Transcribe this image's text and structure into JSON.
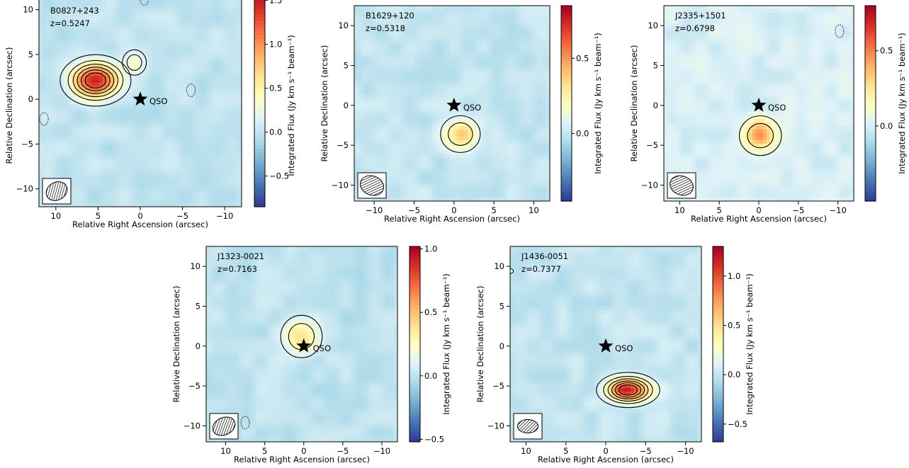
{
  "chart_data": [
    {
      "type": "heatmap",
      "source": "B0827+243",
      "redshift": "z=0.5247",
      "xlabel": "Relative Right Ascension (arcsec)",
      "ylabel": "Relative Declination (arcsec)",
      "colorbar_label": "Integrated Flux (Jy km s⁻¹ beam⁻¹)",
      "xlim": [
        12,
        -12
      ],
      "ylim": [
        -12,
        12.5
      ],
      "x_ticks": [
        "10",
        "5",
        "0",
        "−5",
        "−10"
      ],
      "y_ticks": [
        "−10",
        "−5",
        "0",
        "5",
        "10"
      ],
      "colorbar_range": [
        -0.85,
        1.65
      ],
      "colorbar_ticks": [
        "−0.5",
        "0.0",
        "0.5",
        "1.0",
        "1.5"
      ],
      "qso_label": "QSO",
      "qso_position": [
        0,
        0
      ],
      "emission": [
        {
          "x": 5.3,
          "y": 2.1,
          "peak": 1.55,
          "sx": 1.9,
          "sy": 1.3
        },
        {
          "x": 0.7,
          "y": 4.1,
          "peak": 0.3,
          "sx": 0.8,
          "sy": 0.8
        }
      ],
      "negative_contours": [
        [
          -0.5,
          11.2
        ],
        [
          -6,
          1
        ],
        [
          11.4,
          -2.2
        ]
      ],
      "beam": {
        "major": 2.6,
        "minor": 2.1,
        "pa": -30
      }
    },
    {
      "type": "heatmap",
      "source": "B1629+120",
      "redshift": "z=0.5318",
      "xlabel": "Relative Right Ascension (arcsec)",
      "ylabel": "Relative Declination (arcsec)",
      "colorbar_label": "Integrated Flux (Jy km s⁻¹ beam⁻¹)",
      "xlim": [
        -12.5,
        12
      ],
      "ylim": [
        -12,
        12.5
      ],
      "x_ticks": [
        "−10",
        "−5",
        "0",
        "5",
        "10"
      ],
      "y_ticks": [
        "−10",
        "−5",
        "0",
        "5",
        "10"
      ],
      "colorbar_range": [
        -0.45,
        0.85
      ],
      "colorbar_ticks": [
        "0.0",
        "0.5"
      ],
      "qso_label": "QSO",
      "qso_position": [
        0,
        0
      ],
      "emission": [
        {
          "x": 0.8,
          "y": -3.6,
          "peak": 0.4,
          "sx": 1.4,
          "sy": 1.3
        }
      ],
      "negative_contours": [],
      "beam": {
        "major": 3.0,
        "minor": 2.4,
        "pa": 20
      }
    },
    {
      "type": "heatmap",
      "source": "J2335+1501",
      "redshift": "z=0.6798",
      "xlabel": "Relative Right Ascension (arcsec)",
      "ylabel": "Relative Declination (arcsec)",
      "colorbar_label": "Integrated Flux (Jy km s⁻¹ beam⁻¹)",
      "xlim": [
        12,
        -12
      ],
      "ylim": [
        -12,
        12.5
      ],
      "x_ticks": [
        "10",
        "5",
        "0",
        "−5",
        "−10"
      ],
      "y_ticks": [
        "−10",
        "−5",
        "0",
        "5",
        "10"
      ],
      "colorbar_range": [
        -0.5,
        0.8
      ],
      "colorbar_ticks": [
        "0.0",
        "0.5"
      ],
      "qso_label": "QSO",
      "qso_position": [
        0,
        0
      ],
      "emission": [
        {
          "x": -0.2,
          "y": -3.8,
          "peak": 0.45,
          "sx": 1.5,
          "sy": 1.4
        }
      ],
      "negative_contours": [
        [
          -10.2,
          9.3
        ]
      ],
      "beam": {
        "major": 3.0,
        "minor": 2.4,
        "pa": 20
      }
    },
    {
      "type": "heatmap",
      "source": "J1323-0021",
      "redshift": "z=0.7163",
      "xlabel": "Relative Right Ascension (arcsec)",
      "ylabel": "Relative Declination (arcsec)",
      "colorbar_label": "Integrated Flux (Jy km s⁻¹ beam⁻¹)",
      "xlim": [
        12.5,
        -12
      ],
      "ylim": [
        -12,
        12.5
      ],
      "x_ticks": [
        "10",
        "5",
        "0",
        "−5",
        "−10"
      ],
      "y_ticks": [
        "−10",
        "−5",
        "0",
        "5",
        "10"
      ],
      "colorbar_range": [
        -0.52,
        1.02
      ],
      "colorbar_ticks": [
        "−0.5",
        "0.0",
        "0.5",
        "1.0"
      ],
      "qso_label": "QSO",
      "qso_position": [
        0,
        0
      ],
      "emission": [
        {
          "x": 0.3,
          "y": 1.2,
          "peak": 0.4,
          "sx": 1.5,
          "sy": 1.5
        }
      ],
      "negative_contours": [
        [
          7.5,
          -9.6
        ]
      ],
      "beam": {
        "major": 3.0,
        "minor": 2.2,
        "pa": -25
      }
    },
    {
      "type": "heatmap",
      "source": "J1436-0051",
      "redshift": "z=0.7377",
      "xlabel": "Relative Right Ascension (arcsec)",
      "ylabel": "Relative Declination (arcsec)",
      "colorbar_label": "Integrated Flux (Jy km s⁻¹ beam⁻¹)",
      "xlim": [
        12,
        -12
      ],
      "ylim": [
        -12,
        12.5
      ],
      "x_ticks": [
        "10",
        "5",
        "0",
        "−5",
        "−10"
      ],
      "y_ticks": [
        "−10",
        "−5",
        "0",
        "5",
        "10"
      ],
      "colorbar_range": [
        -0.68,
        1.3
      ],
      "colorbar_ticks": [
        "−0.5",
        "0.0",
        "0.5",
        "1.0"
      ],
      "qso_label": "QSO",
      "qso_position": [
        0,
        0
      ],
      "emission": [
        {
          "x": -2.8,
          "y": -5.5,
          "peak": 1.2,
          "sx": 1.8,
          "sy": 1.0
        }
      ],
      "negative_contours": [],
      "edge_contour": [
        12.3,
        9.4
      ],
      "beam": {
        "major": 2.6,
        "minor": 1.7,
        "pa": 0
      }
    }
  ]
}
